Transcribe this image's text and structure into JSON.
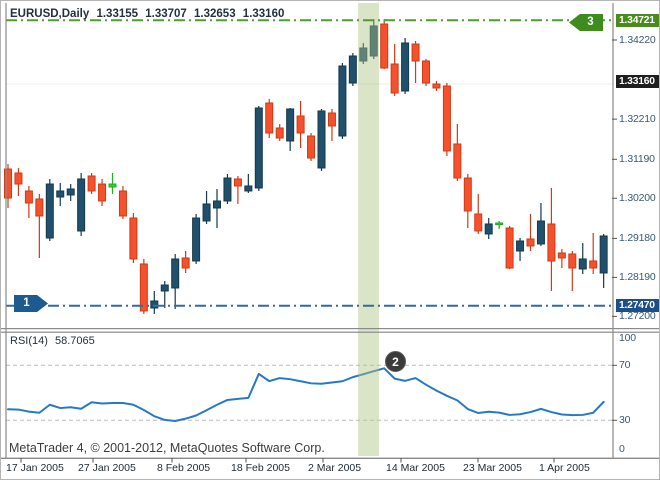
{
  "header": {
    "symbol": "EURUSD,Daily",
    "open": "1.33155",
    "high": "1.33707",
    "low": "1.32653",
    "close": "1.33160"
  },
  "indicator": {
    "name": "RSI(14)",
    "value": "58.7065"
  },
  "watermark": "MetaTrader 4, © 2001-2012, MetaQuotes Software Corp.",
  "annotations": {
    "badge1": {
      "label": "1",
      "price_level": 1.2747
    },
    "badge2": {
      "label": "2",
      "attached_to": "rsi-peak"
    },
    "badge3": {
      "label": "3",
      "price_level": 1.34721
    }
  },
  "colors": {
    "bull": "#20506b",
    "bull_border": "#153a4d",
    "bear": "#f4512c",
    "bear_border": "#cf3b16",
    "doji_green": "#33cc33",
    "doji_green_border": "#22aa22",
    "rsi_line": "#2679c8",
    "resistance_line": "#4c9e2f",
    "support_line": "#2e6ca3",
    "band": "rgba(173,196,131,0.45)",
    "level_dash": "#bbbbbb",
    "frame": "#8a8a8a",
    "grid_faint": "#ececec",
    "tick": "#555555",
    "axis_text": "#3b5a75",
    "badge1_bg": "#1d5a8f",
    "badge2_bg": "#3b3b3b",
    "badge3_bg": "#3f8c1e",
    "price_resistance_badge_bg": "#4a8c1c",
    "price_current_badge_bg": "#1e1e1e",
    "price_support_badge_bg": "#1c4f8a"
  },
  "chart_data": {
    "type": "candlestick",
    "symbol": "EURUSD",
    "timeframe": "Daily",
    "price_axis": {
      "ticks": [
        1.3422,
        1.3221,
        1.3119,
        1.302,
        1.2918,
        1.2819,
        1.272
      ],
      "resistance": 1.34721,
      "last_price": 1.3316,
      "support": 1.2747
    },
    "x_axis": {
      "dates": [
        "17 Jan 2005",
        "27 Jan 2005",
        "8 Feb 2005",
        "18 Feb 2005",
        "2 Mar 2005",
        "14 Mar 2005",
        "23 Mar 2005",
        "1 Apr 2005"
      ],
      "label_x": [
        5,
        77,
        156,
        230,
        307,
        385,
        462,
        538
      ]
    },
    "candles": [
      [
        1.30943,
        1.3107,
        1.29953,
        1.30207
      ],
      [
        1.30842,
        1.30969,
        1.30258,
        1.30562
      ],
      [
        1.30385,
        1.30512,
        1.29699,
        1.3008
      ],
      [
        1.30182,
        1.30309,
        1.28683,
        1.2975
      ],
      [
        1.29191,
        1.3069,
        1.29115,
        1.30562
      ],
      [
        1.30232,
        1.30588,
        1.30004,
        1.30385
      ],
      [
        1.30284,
        1.30563,
        1.30131,
        1.30436
      ],
      [
        1.29369,
        1.30842,
        1.29242,
        1.3069
      ],
      [
        1.30766,
        1.30842,
        1.30309,
        1.30385
      ],
      [
        1.30562,
        1.3069,
        1.30004,
        1.30131
      ],
      [
        1.30486,
        1.30842,
        1.30309,
        1.30562
      ],
      [
        1.30385,
        1.30512,
        1.29673,
        1.2975
      ],
      [
        1.29699,
        1.29826,
        1.28556,
        1.28658
      ],
      [
        1.28531,
        1.28658,
        1.27261,
        1.27337
      ],
      [
        1.27413,
        1.27845,
        1.27261,
        1.27591
      ],
      [
        1.27845,
        1.28099,
        1.27413,
        1.27997
      ],
      [
        1.27921,
        1.28785,
        1.27388,
        1.28658
      ],
      [
        1.28683,
        1.28861,
        1.28302,
        1.28429
      ],
      [
        1.28607,
        1.29801,
        1.28531,
        1.29699
      ],
      [
        1.29623,
        1.30385,
        1.29547,
        1.30055
      ],
      [
        1.29953,
        1.30436,
        1.29445,
        1.30131
      ],
      [
        1.30131,
        1.30817,
        1.30055,
        1.30715
      ],
      [
        1.3069,
        1.30766,
        1.30055,
        1.30512
      ],
      [
        1.30385,
        1.30817,
        1.30334,
        1.30512
      ],
      [
        1.30461,
        1.32544,
        1.30385,
        1.32493
      ],
      [
        1.3262,
        1.32722,
        1.31731,
        1.31858
      ],
      [
        1.31985,
        1.32087,
        1.31655,
        1.31731
      ],
      [
        1.31655,
        1.32493,
        1.31401,
        1.32468
      ],
      [
        1.3229,
        1.32671,
        1.31477,
        1.31858
      ],
      [
        1.31782,
        1.31858,
        1.31147,
        1.31223
      ],
      [
        1.30969,
        1.32468,
        1.30893,
        1.32417
      ],
      [
        1.32366,
        1.32468,
        1.31655,
        1.32036
      ],
      [
        1.31782,
        1.33636,
        1.31706,
        1.3356
      ],
      [
        1.33128,
        1.3389,
        1.33052,
        1.33814
      ],
      [
        1.33687,
        1.34144,
        1.33611,
        1.34017
      ],
      [
        1.33814,
        1.34753,
        1.33738,
        1.34576
      ],
      [
        1.34626,
        1.34753,
        1.33484,
        1.33509
      ],
      [
        1.33611,
        1.34118,
        1.32798,
        1.32874
      ],
      [
        1.32925,
        1.34271,
        1.32849,
        1.34144
      ],
      [
        1.34118,
        1.34195,
        1.33128,
        1.33687
      ],
      [
        1.33687,
        1.33738,
        1.33052,
        1.33128
      ],
      [
        1.33103,
        1.33179,
        1.32925,
        1.33001
      ],
      [
        1.33052,
        1.33128,
        1.31274,
        1.31401
      ],
      [
        1.31579,
        1.32087,
        1.30639,
        1.30715
      ],
      [
        1.30715,
        1.30817,
        1.29445,
        1.29877
      ],
      [
        1.29801,
        1.30309,
        1.29293,
        1.29369
      ],
      [
        1.29293,
        1.29699,
        1.29166,
        1.29547
      ],
      [
        1.29547,
        1.29623,
        1.2942,
        1.29572
      ],
      [
        1.29445,
        1.29496,
        1.28404,
        1.28429
      ],
      [
        1.28861,
        1.29191,
        1.28607,
        1.29115
      ],
      [
        1.29166,
        1.29801,
        1.28861,
        1.28988
      ],
      [
        1.29039,
        1.3008,
        1.28988,
        1.29623
      ],
      [
        1.29547,
        1.30461,
        1.27845,
        1.28607
      ],
      [
        1.2881,
        1.28912,
        1.28429,
        1.28683
      ],
      [
        1.28785,
        1.28861,
        1.27845,
        1.28429
      ],
      [
        1.28404,
        1.29064,
        1.28277,
        1.28658
      ],
      [
        1.28607,
        1.29318,
        1.28277,
        1.28429
      ],
      [
        1.28302,
        1.29293,
        1.27921,
        1.29242
      ]
    ],
    "green_marker_candles": [
      10,
      47
    ],
    "highlight_band": {
      "from_candle": 34,
      "to_candle": 35
    },
    "rsi": {
      "name": "RSI(14)",
      "current": 58.7065,
      "levels": [
        70,
        30
      ],
      "scale_labels": [
        100,
        70,
        30,
        0
      ],
      "range": [
        0,
        100
      ],
      "values": [
        38.0,
        37.8,
        36.3,
        35.5,
        41.3,
        38.9,
        39.5,
        38.4,
        43.1,
        42.2,
        42.6,
        42.6,
        41.3,
        37.5,
        33.0,
        30.3,
        29.5,
        31.2,
        33.5,
        37.3,
        41.3,
        44.8,
        45.6,
        46.3,
        63.7,
        58.5,
        60.7,
        59.9,
        58.4,
        56.9,
        56.6,
        57.5,
        58.4,
        61.4,
        63.5,
        65.7,
        67.8,
        60.3,
        58.7,
        60.7,
        55.9,
        51.6,
        47.8,
        44.5,
        38.2,
        35.3,
        36.2,
        35.6,
        33.9,
        34.4,
        36.0,
        38.3,
        36.0,
        34.2,
        33.8,
        33.9,
        35.5,
        43.4
      ]
    }
  }
}
